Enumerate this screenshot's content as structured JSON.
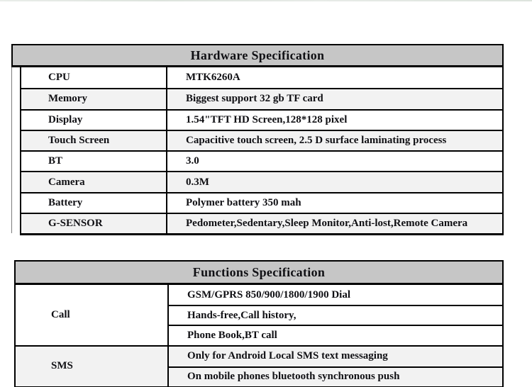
{
  "hardware": {
    "title": "Hardware Specification",
    "rows": [
      {
        "label": "CPU",
        "value": "MTK6260A"
      },
      {
        "label": "Memory",
        "value": "Biggest support 32 gb TF card"
      },
      {
        "label": "Display",
        "value": "1.54\"TFT HD Screen,128*128 pixel"
      },
      {
        "label": "Touch Screen",
        "value": "Capacitive touch screen, 2.5 D surface laminating process"
      },
      {
        "label": "BT",
        "value": "3.0"
      },
      {
        "label": "Camera",
        "value": "0.3M"
      },
      {
        "label": "Battery",
        "value": "Polymer battery 350 mah"
      },
      {
        "label": "G-SENSOR",
        "value": "Pedometer,Sedentary,Sleep Monitor,Anti-lost,Remote Camera"
      }
    ]
  },
  "functions": {
    "title": "Functions Specification",
    "groups": [
      {
        "label": "Call",
        "items": [
          "GSM/GPRS 850/900/1800/1900 Dial",
          "Hands-free,Call history,",
          "Phone Book,BT call"
        ]
      },
      {
        "label": "SMS",
        "items": [
          "Only for Android Local SMS text messaging",
          "On mobile phones bluetooth synchronous push"
        ]
      }
    ]
  },
  "colors": {
    "header_bg": "#c6c6c6",
    "row_alt_bg": "#f2f2f2",
    "border": "#000000"
  }
}
